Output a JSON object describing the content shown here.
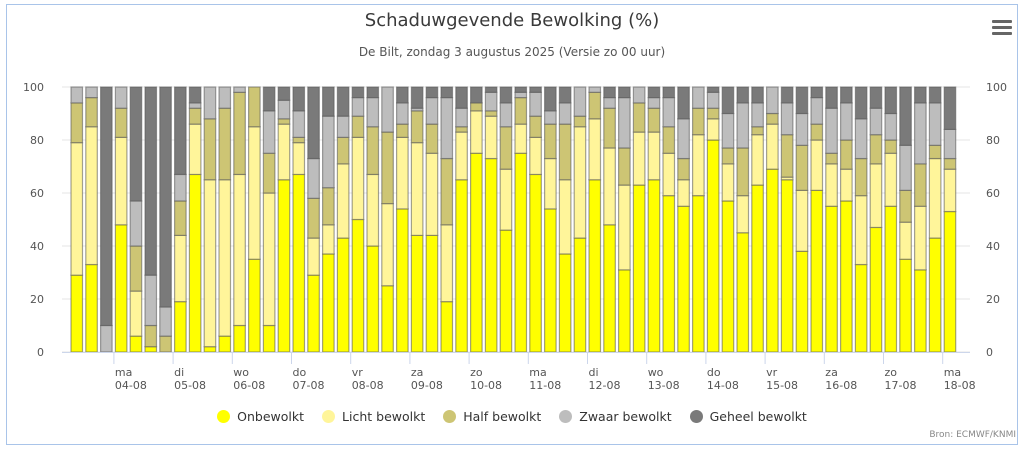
{
  "header": {
    "title": "Schaduwgevende Bewolking (%)",
    "subtitle": "De Bilt, zondag 3 augustus 2025 (Versie zo 00 uur)",
    "menu_icon": "hamburger-menu-icon"
  },
  "credit": "Bron: ECMWF/KNMI",
  "legend": [
    {
      "label": "Onbewolkt",
      "color": "#ffff00"
    },
    {
      "label": "Licht bewolkt",
      "color": "#fff59a"
    },
    {
      "label": "Half bewolkt",
      "color": "#cdc574"
    },
    {
      "label": "Zwaar bewolkt",
      "color": "#bdbdbd"
    },
    {
      "label": "Geheel bewolkt",
      "color": "#7a7a7a"
    }
  ],
  "chart_data": {
    "type": "bar",
    "stacked": true,
    "title": "Schaduwgevende Bewolking (%)",
    "subtitle": "De Bilt, zondag 3 augustus 2025 (Versie zo 00 uur)",
    "xlabel": "",
    "ylabel": "",
    "ylim": [
      0,
      100
    ],
    "yticks": [
      0,
      20,
      40,
      60,
      80,
      100
    ],
    "y_axis_both_sides": true,
    "grid": true,
    "legend_position": "bottom",
    "bars_per_day": 4,
    "day_ticks": [
      {
        "day": "ma",
        "date": "04-08",
        "before_bar": 3
      },
      {
        "day": "di",
        "date": "05-08",
        "before_bar": 7
      },
      {
        "day": "wo",
        "date": "06-08",
        "before_bar": 11
      },
      {
        "day": "do",
        "date": "07-08",
        "before_bar": 15
      },
      {
        "day": "vr",
        "date": "08-08",
        "before_bar": 19
      },
      {
        "day": "za",
        "date": "09-08",
        "before_bar": 23
      },
      {
        "day": "zo",
        "date": "10-08",
        "before_bar": 27
      },
      {
        "day": "ma",
        "date": "11-08",
        "before_bar": 31
      },
      {
        "day": "di",
        "date": "12-08",
        "before_bar": 35
      },
      {
        "day": "wo",
        "date": "13-08",
        "before_bar": 39
      },
      {
        "day": "do",
        "date": "14-08",
        "before_bar": 43
      },
      {
        "day": "vr",
        "date": "15-08",
        "before_bar": 47
      },
      {
        "day": "za",
        "date": "16-08",
        "before_bar": 51
      },
      {
        "day": "zo",
        "date": "17-08",
        "before_bar": 55
      },
      {
        "day": "ma",
        "date": "18-08",
        "before_bar": 59
      }
    ],
    "series": [
      {
        "name": "Onbewolkt",
        "color": "#ffff00",
        "values": [
          29,
          33,
          0,
          48,
          6,
          2,
          0,
          19,
          67,
          2,
          6,
          10,
          35,
          10,
          65,
          67,
          29,
          37,
          43,
          50,
          40,
          25,
          54,
          44,
          44,
          19,
          65,
          75,
          73,
          46,
          75,
          67,
          54,
          37,
          43,
          65,
          48,
          31,
          63,
          65,
          59,
          55,
          59,
          80,
          57,
          45,
          63,
          69,
          65,
          38,
          61,
          55,
          57,
          33,
          47,
          55,
          35,
          31,
          43,
          53
        ]
      },
      {
        "name": "Licht bewolkt",
        "color": "#fff59a",
        "values": [
          50,
          52,
          0,
          33,
          17,
          0,
          0,
          25,
          19,
          63,
          59,
          57,
          50,
          50,
          21,
          12,
          14,
          11,
          28,
          31,
          27,
          31,
          27,
          35,
          31,
          29,
          18,
          16,
          16,
          23,
          11,
          14,
          19,
          28,
          42,
          23,
          29,
          32,
          20,
          18,
          16,
          10,
          23,
          8,
          14,
          14,
          19,
          17,
          1,
          23,
          19,
          16,
          12,
          26,
          24,
          20,
          14,
          24,
          30,
          16
        ]
      },
      {
        "name": "Half bewolkt",
        "color": "#cdc574",
        "values": [
          15,
          11,
          0,
          11,
          17,
          8,
          6,
          13,
          6,
          23,
          27,
          31,
          15,
          15,
          2,
          2,
          15,
          14,
          10,
          8,
          18,
          27,
          5,
          12,
          11,
          25,
          2,
          3,
          2,
          16,
          10,
          8,
          13,
          21,
          4,
          10,
          15,
          14,
          11,
          9,
          10,
          8,
          10,
          4,
          6,
          18,
          3,
          4,
          16,
          17,
          6,
          4,
          11,
          14,
          11,
          5,
          12,
          16,
          5,
          4
        ]
      },
      {
        "name": "Zwaar bewolkt",
        "color": "#bdbdbd",
        "values": [
          6,
          4,
          10,
          8,
          17,
          19,
          11,
          10,
          2,
          12,
          8,
          2,
          0,
          16,
          7,
          10,
          15,
          27,
          8,
          7,
          11,
          17,
          8,
          1,
          10,
          23,
          7,
          0,
          7,
          9,
          2,
          9,
          5,
          8,
          11,
          2,
          4,
          19,
          6,
          4,
          11,
          15,
          8,
          6,
          13,
          17,
          9,
          10,
          12,
          12,
          10,
          17,
          14,
          15,
          10,
          10,
          17,
          23,
          16,
          11
        ]
      },
      {
        "name": "Geheel bewolkt",
        "color": "#7a7a7a",
        "values": [
          0,
          0,
          90,
          0,
          43,
          71,
          83,
          33,
          6,
          0,
          0,
          0,
          0,
          9,
          5,
          9,
          27,
          11,
          11,
          4,
          4,
          0,
          6,
          8,
          4,
          4,
          8,
          6,
          2,
          6,
          2,
          2,
          9,
          6,
          0,
          0,
          4,
          4,
          0,
          4,
          4,
          12,
          0,
          2,
          10,
          6,
          6,
          0,
          6,
          10,
          4,
          8,
          6,
          12,
          8,
          10,
          22,
          6,
          6,
          16
        ]
      }
    ]
  }
}
